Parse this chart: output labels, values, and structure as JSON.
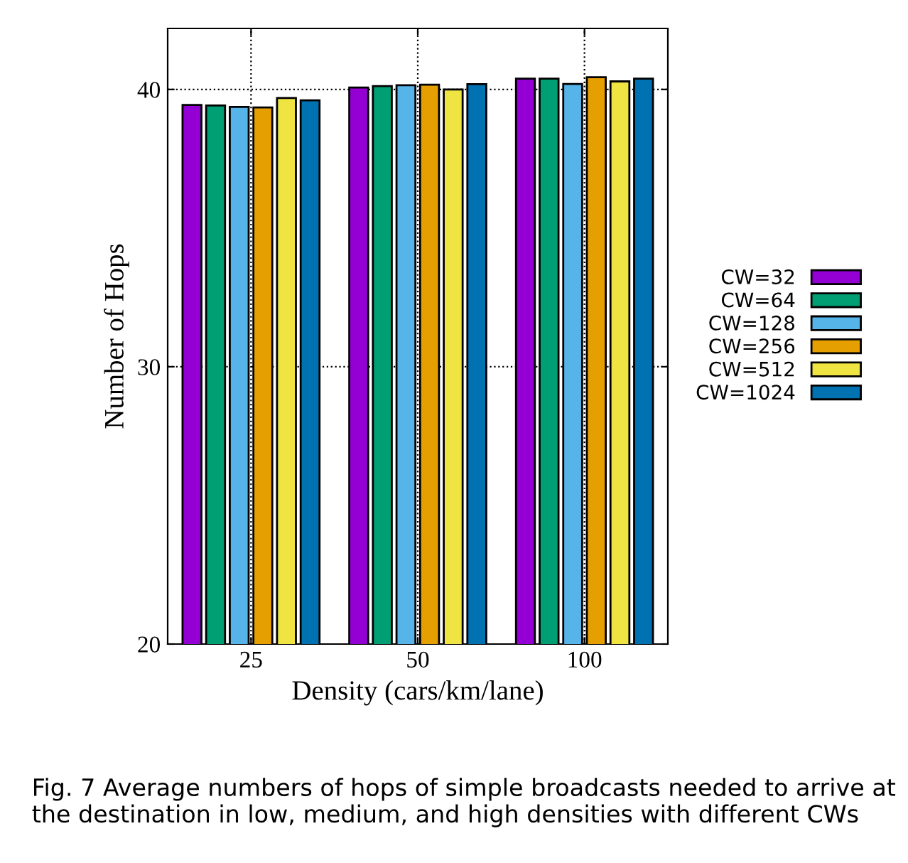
{
  "chart_data": {
    "type": "bar",
    "xlabel": "Density (cars/km/lane)",
    "ylabel": "Number of Hops",
    "categories": [
      "25",
      "50",
      "100"
    ],
    "series": [
      {
        "name": "CW=32",
        "color": "#9400d3",
        "values": [
          39.44,
          40.07,
          40.39
        ]
      },
      {
        "name": "CW=64",
        "color": "#009e73",
        "values": [
          39.42,
          40.12,
          40.39
        ]
      },
      {
        "name": "CW=128",
        "color": "#56b4e9",
        "values": [
          39.37,
          40.15,
          40.2
        ]
      },
      {
        "name": "CW=256",
        "color": "#e69f00",
        "values": [
          39.35,
          40.17,
          40.44
        ]
      },
      {
        "name": "CW=512",
        "color": "#f0e442",
        "values": [
          39.69,
          40.0,
          40.29
        ]
      },
      {
        "name": "CW=1024",
        "color": "#0072b2",
        "values": [
          39.61,
          40.19,
          40.39
        ]
      }
    ],
    "ylim": [
      20,
      42.2
    ],
    "yticks": [
      20,
      30,
      40
    ],
    "grid": true,
    "legend": "right",
    "annotations": [
      "Fig. 7 Average numbers of hops of simple broadcasts needed to arrive at the destination in low, medium, and high densities with different CWs"
    ]
  }
}
